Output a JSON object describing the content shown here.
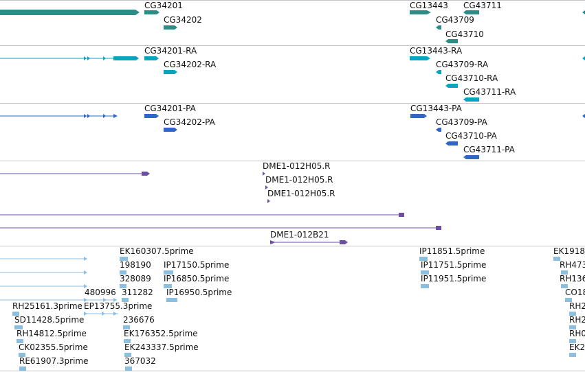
{
  "colors": {
    "gene": "#2e8b86",
    "transcript": "#0aa3c2",
    "protein": "#2f67c9",
    "cdna": "#6a4fa3",
    "est": "#8bbfe0",
    "divider": "#c4c4c4"
  },
  "tracks": {
    "genes": [
      "CG34201",
      "CG34202",
      "CG13443",
      "CG43711",
      "CG43709",
      "CG43710"
    ],
    "transcripts": [
      "CG34201-RA",
      "CG34202-RA",
      "CG13443-RA",
      "CG43709-RA",
      "CG43710-RA",
      "CG43711-RA"
    ],
    "proteins": [
      "CG34201-PA",
      "CG34202-PA",
      "CG13443-PA",
      "CG43709-PA",
      "CG43710-PA",
      "CG43711-PA"
    ],
    "cdna_clones": [
      "DME1-012H05.R",
      "DME1-012H05.R",
      "DME1-012H05.R",
      "DME1-012B21"
    ],
    "ests": [
      "EK160307.5prime",
      "198190",
      "IP17150.5prime",
      "328089",
      "IP16850.5prime",
      "480996",
      "311282",
      "IP16950.5prime",
      "RH25161.3prime",
      "EP13755.3prime",
      "SD11428.5prime",
      "236676",
      "RH14812.5prime",
      "EK176352.5prime",
      "CK02355.5prime",
      "EK243337.5prime",
      "RE61907.3prime",
      "367032",
      "IP11851.5prime",
      "IP11751.5prime",
      "IP11951.5prime",
      "EK1918",
      "RH473",
      "RH136",
      "CO18",
      "RH2",
      "RH2",
      "RH0",
      "EK2"
    ]
  }
}
